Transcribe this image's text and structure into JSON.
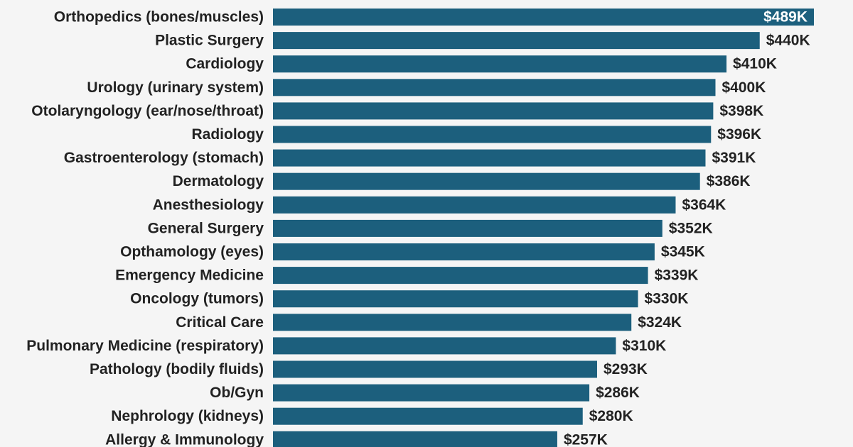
{
  "colors": {
    "background": "#f5f5f5",
    "bar": "#1c5f7d",
    "label_text": "#222222",
    "value_text_outside": "#222222",
    "value_text_inside": "#ffffff"
  },
  "chart_data": {
    "type": "bar",
    "orientation": "horizontal",
    "title": "",
    "xlabel": "",
    "ylabel": "",
    "xlim": [
      0,
      489
    ],
    "grid": false,
    "value_unit": "thousand USD",
    "categories": [
      "Orthopedics (bones/muscles)",
      "Plastic Surgery",
      "Cardiology",
      "Urology (urinary system)",
      "Otolaryngology (ear/nose/throat)",
      "Radiology",
      "Gastroenterology (stomach)",
      "Dermatology",
      "Anesthesiology",
      "General Surgery",
      "Opthamology (eyes)",
      "Emergency Medicine",
      "Oncology (tumors)",
      "Critical Care",
      "Pulmonary Medicine (respiratory)",
      "Pathology (bodily fluids)",
      "Ob/Gyn",
      "Nephrology (kidneys)",
      "Allergy & Immunology"
    ],
    "values": [
      489,
      440,
      410,
      400,
      398,
      396,
      391,
      386,
      364,
      352,
      345,
      339,
      330,
      324,
      310,
      293,
      286,
      280,
      257
    ],
    "value_labels": [
      "$489K",
      "$440K",
      "$410K",
      "$400K",
      "$398K",
      "$396K",
      "$391K",
      "$386K",
      "$364K",
      "$352K",
      "$345K",
      "$339K",
      "$330K",
      "$324K",
      "$310K",
      "$293K",
      "$286K",
      "$280K",
      "$257K"
    ]
  }
}
